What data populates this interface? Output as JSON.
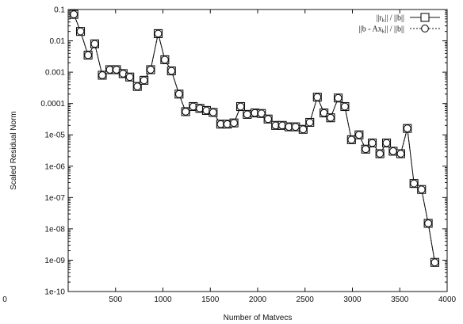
{
  "chart_data": {
    "type": "line",
    "title": "",
    "xlabel": "Number of Matvecs",
    "ylabel": "Scaled Residual Norm",
    "xlim": [
      0,
      4000
    ],
    "ylim": [
      1e-10,
      0.1
    ],
    "yscale": "log",
    "x_ticks": [
      "0",
      "500",
      "1000",
      "1500",
      "2000",
      "2500",
      "3000",
      "3500",
      "4000"
    ],
    "y_ticks": [
      "0.1",
      "0.01",
      "0.001",
      "0.0001",
      "1e-05",
      "1e-06",
      "1e-07",
      "1e-08",
      "1e-09",
      "1e-10"
    ],
    "grid": false,
    "legend_position": "top-right",
    "legend": [
      {
        "label_main": "||r",
        "label_sub": "k",
        "label_rest": "|| / ||b||",
        "marker": "square",
        "line": "solid"
      },
      {
        "label_main": "||b - Ax",
        "label_sub": "k",
        "label_rest": "|| / ||b||",
        "marker": "circle",
        "line": "dashed"
      }
    ],
    "x": [
      60,
      130,
      210,
      280,
      360,
      440,
      510,
      580,
      650,
      730,
      800,
      870,
      950,
      1020,
      1090,
      1170,
      1240,
      1320,
      1390,
      1460,
      1530,
      1610,
      1680,
      1750,
      1820,
      1890,
      1970,
      2040,
      2110,
      2190,
      2260,
      2330,
      2400,
      2480,
      2550,
      2630,
      2700,
      2770,
      2850,
      2920,
      2990,
      3070,
      3140,
      3210,
      3290,
      3360,
      3430,
      3510,
      3580,
      3650,
      3730,
      3800,
      3870
    ],
    "series": [
      {
        "values": [
          0.07,
          0.02,
          0.0035,
          0.008,
          0.0008,
          0.0012,
          0.0012,
          0.0009,
          0.0007,
          0.00035,
          0.00055,
          0.0012,
          0.017,
          0.0025,
          0.0011,
          0.0002,
          5.5e-05,
          8e-05,
          7e-05,
          6e-05,
          5.2e-05,
          2.2e-05,
          2.2e-05,
          2.4e-05,
          8e-05,
          4.5e-05,
          5e-05,
          4.8e-05,
          3.2e-05,
          2e-05,
          2e-05,
          1.8e-05,
          1.8e-05,
          1.5e-05,
          2.5e-05,
          0.00016,
          5e-05,
          3.5e-05,
          0.00015,
          8e-05,
          7e-06,
          1e-05,
          3.5e-06,
          5.5e-06,
          2.5e-06,
          5.5e-06,
          3e-06,
          2.5e-06,
          1.6e-05,
          2.8e-07,
          1.8e-07,
          1.5e-08,
          8.5e-10
        ]
      },
      {
        "values": [
          0.07,
          0.02,
          0.0035,
          0.008,
          0.0008,
          0.0012,
          0.0012,
          0.0009,
          0.0007,
          0.00035,
          0.00055,
          0.0012,
          0.017,
          0.0025,
          0.0011,
          0.0002,
          5.5e-05,
          8e-05,
          7e-05,
          6e-05,
          5.2e-05,
          2.2e-05,
          2.2e-05,
          2.4e-05,
          8e-05,
          4.5e-05,
          5e-05,
          4.8e-05,
          3.2e-05,
          2e-05,
          2e-05,
          1.8e-05,
          1.8e-05,
          1.5e-05,
          2.5e-05,
          0.00016,
          5e-05,
          3.5e-05,
          0.00015,
          8e-05,
          7e-06,
          1e-05,
          3.5e-06,
          5.5e-06,
          2.5e-06,
          5.5e-06,
          3e-06,
          2.5e-06,
          1.6e-05,
          2.8e-07,
          1.8e-07,
          1.5e-08,
          8.5e-10
        ]
      }
    ]
  }
}
